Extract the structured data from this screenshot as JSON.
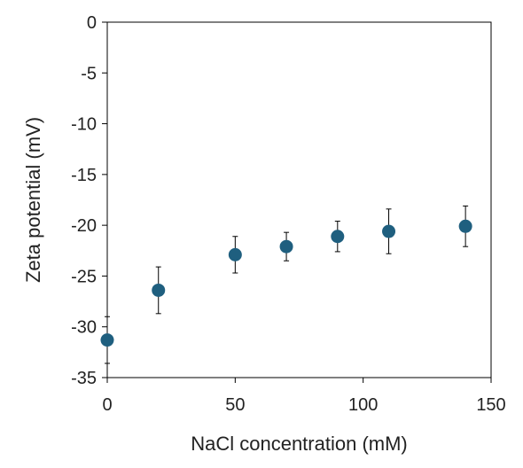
{
  "chart_data": {
    "type": "scatter",
    "title": "",
    "xlabel": "NaCl concentration (mM)",
    "ylabel": "Zeta potential (mV)",
    "xlim": [
      0,
      150
    ],
    "ylim": [
      -35,
      0
    ],
    "xticks": [
      0,
      50,
      100,
      150
    ],
    "yticks": [
      0,
      -5,
      -10,
      -15,
      -20,
      -25,
      -30,
      -35
    ],
    "grid": false,
    "legend": "none",
    "marker_color": "#1f5f7f",
    "error_bar_color": "#000000",
    "series": [
      {
        "x": [
          0,
          20,
          50,
          70,
          90,
          110,
          140
        ],
        "y": [
          -31.3,
          -26.4,
          -22.9,
          -22.1,
          -21.1,
          -20.6,
          -20.1
        ],
        "error": [
          2.3,
          2.3,
          1.8,
          1.4,
          1.5,
          2.2,
          2.0
        ]
      }
    ]
  }
}
